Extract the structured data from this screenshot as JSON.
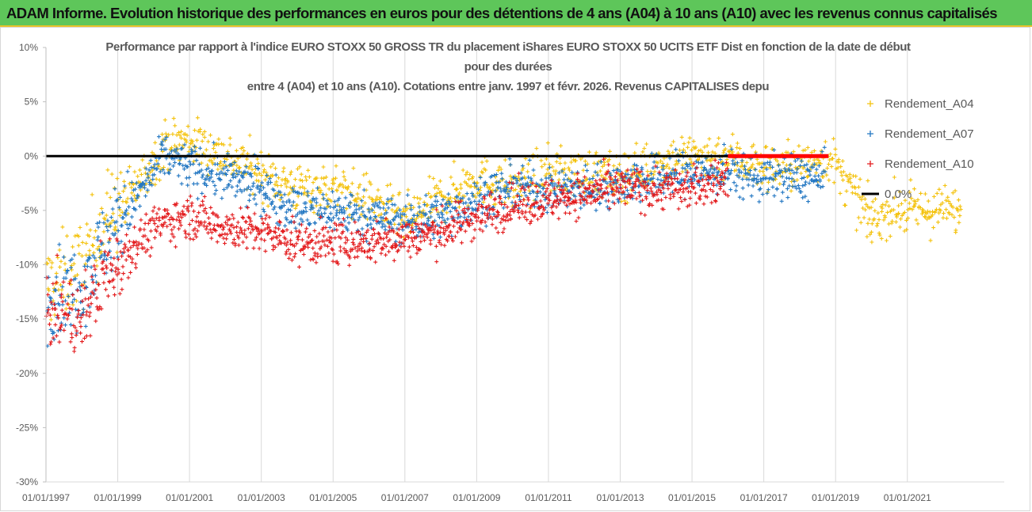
{
  "banner": {
    "title": "ADAM Informe. Evolution historique des performances en euros pour des détentions de 4 ans (A04) à 10 ans (A10) avec les revenus connus capitalisés"
  },
  "chart_data": {
    "type": "scatter",
    "title_lines": [
      "Performance par rapport à l'indice EURO STOXX 50 GROSS TR  du placement iShares EURO STOXX 50 UCITS ETF Dist en fonction de la date de début",
      "pour des durées",
      "entre 4 (A04) et 10 ans (A10). Cotations entre janv. 1997 et févr. 2026. Revenus CAPITALISES depu"
    ],
    "xlabel": "",
    "ylabel": "",
    "x_range": [
      1997.0,
      2023.7
    ],
    "ylim": [
      -30,
      10
    ],
    "y_ticks": [
      10,
      5,
      0,
      -5,
      -10,
      -15,
      -20,
      -25,
      -30
    ],
    "y_tick_labels": [
      "10%",
      "5%",
      "0%",
      "-5%",
      "-10%",
      "-15%",
      "-20%",
      "-25%",
      "-30%"
    ],
    "x_ticks": [
      1997,
      1999,
      2001,
      2003,
      2005,
      2007,
      2009,
      2011,
      2013,
      2015,
      2017,
      2019,
      2021
    ],
    "x_tick_labels": [
      "01/01/1997",
      "01/01/1999",
      "01/01/2001",
      "01/01/2003",
      "01/01/2005",
      "01/01/2007",
      "01/01/2009",
      "01/01/2011",
      "01/01/2013",
      "01/01/2015",
      "01/01/2017",
      "01/01/2019",
      "01/01/2021"
    ],
    "legend_position": "right",
    "grid": "vertical lines at x ticks",
    "series": [
      {
        "name": "Rendement_A04",
        "color": "#f4c20d",
        "marker": "plus",
        "x_end": 2022.5,
        "approx_trend": [
          [
            1997.0,
            -12
          ],
          [
            1998.0,
            -10
          ],
          [
            1998.6,
            -6
          ],
          [
            1999.5,
            -3
          ],
          [
            2000.3,
            1
          ],
          [
            2001.0,
            1.5
          ],
          [
            2002.0,
            0
          ],
          [
            2003.0,
            -1.5
          ],
          [
            2004.0,
            -3
          ],
          [
            2005.0,
            -3
          ],
          [
            2006.0,
            -4
          ],
          [
            2007.0,
            -6
          ],
          [
            2008.0,
            -4
          ],
          [
            2009.0,
            -2
          ],
          [
            2010.0,
            -3
          ],
          [
            2011.0,
            -1.5
          ],
          [
            2012.0,
            -1.5
          ],
          [
            2013.0,
            -2
          ],
          [
            2014.0,
            -0.5
          ],
          [
            2015.0,
            0
          ],
          [
            2016.0,
            0
          ],
          [
            2017.0,
            -1
          ],
          [
            2018.0,
            -1
          ],
          [
            2018.8,
            0
          ],
          [
            2020.0,
            -6
          ],
          [
            2020.5,
            -5
          ],
          [
            2021.5,
            -5
          ],
          [
            2022.5,
            -5
          ]
        ]
      },
      {
        "name": "Rendement_A07",
        "color": "#2377c2",
        "marker": "plus",
        "x_end": 2018.7,
        "approx_trend": [
          [
            1997.0,
            -13
          ],
          [
            1998.0,
            -12
          ],
          [
            1998.6,
            -8
          ],
          [
            1999.5,
            -4
          ],
          [
            2000.3,
            0
          ],
          [
            2001.0,
            -1
          ],
          [
            2002.0,
            -2
          ],
          [
            2003.0,
            -3
          ],
          [
            2004.0,
            -5
          ],
          [
            2005.0,
            -5
          ],
          [
            2006.0,
            -5.5
          ],
          [
            2007.0,
            -6
          ],
          [
            2008.0,
            -5.5
          ],
          [
            2009.0,
            -4
          ],
          [
            2010.0,
            -3
          ],
          [
            2011.0,
            -3
          ],
          [
            2012.0,
            -3
          ],
          [
            2013.0,
            -2.5
          ],
          [
            2014.0,
            -2
          ],
          [
            2015.0,
            -1.5
          ],
          [
            2016.0,
            -1.5
          ],
          [
            2017.0,
            -2
          ],
          [
            2018.0,
            -2
          ],
          [
            2018.7,
            -2
          ]
        ]
      },
      {
        "name": "Rendement_A10",
        "color": "#e31a1c",
        "marker": "plus",
        "x_end": 2016.0,
        "approx_trend": [
          [
            1997.0,
            -14
          ],
          [
            1998.0,
            -15
          ],
          [
            1998.6,
            -11
          ],
          [
            1999.5,
            -8
          ],
          [
            2000.3,
            -6
          ],
          [
            2001.0,
            -5.5
          ],
          [
            2002.0,
            -6.5
          ],
          [
            2003.0,
            -7
          ],
          [
            2004.0,
            -8
          ],
          [
            2005.0,
            -8
          ],
          [
            2006.0,
            -8
          ],
          [
            2007.0,
            -7.5
          ],
          [
            2008.0,
            -7
          ],
          [
            2009.0,
            -5.5
          ],
          [
            2010.0,
            -4.5
          ],
          [
            2011.0,
            -4
          ],
          [
            2012.0,
            -3.5
          ],
          [
            2013.0,
            -3
          ],
          [
            2014.0,
            -3
          ],
          [
            2015.0,
            -3
          ],
          [
            2016.0,
            -2
          ]
        ]
      },
      {
        "name": "0,0%",
        "color": "#000000",
        "type": "line",
        "y": 0,
        "x_range": [
          1997.0,
          2018.8
        ]
      }
    ],
    "annotations": [
      {
        "text": "thick red segment at 0%",
        "x_range": [
          2016.0,
          2018.8
        ],
        "y": 0,
        "color": "#ff0000"
      }
    ]
  }
}
